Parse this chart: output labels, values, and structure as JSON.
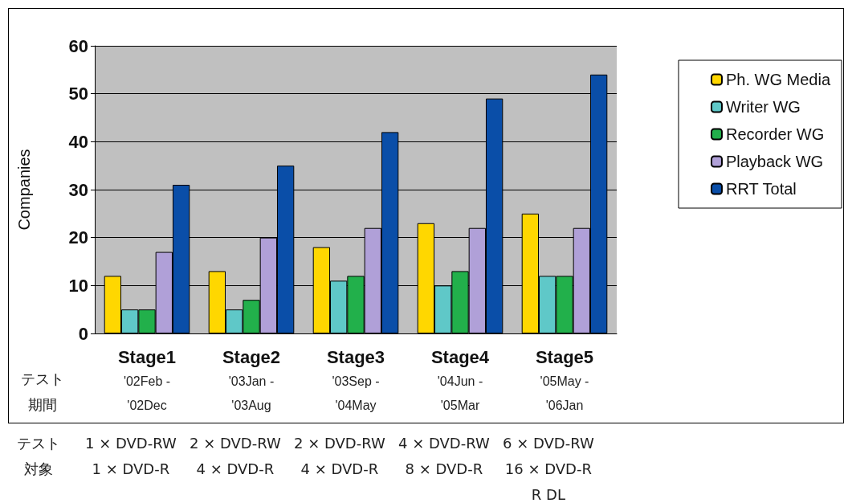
{
  "chart_data": {
    "type": "bar",
    "ylabel": "Companies",
    "categories": [
      "Stage1\n'02Feb -\n'02Dec",
      "Stage2\n'03Jan -\n'03Aug",
      "Stage3\n'03Sep -\n'04May",
      "Stage4\n'04Jun -\n'05Mar",
      "Stage5\n'05May -\n'06Jan"
    ],
    "series": [
      {
        "name": "Ph. WG Media",
        "color": "#ffd700",
        "values": [
          12,
          13,
          18,
          23,
          25
        ]
      },
      {
        "name": "Writer WG",
        "color": "#5fc8c8",
        "values": [
          5,
          5,
          11,
          10,
          12
        ]
      },
      {
        "name": "Recorder WG",
        "color": "#22b04b",
        "values": [
          5,
          7,
          12,
          13,
          12
        ]
      },
      {
        "name": "Playback WG",
        "color": "#b0a0d8",
        "values": [
          17,
          20,
          22,
          22,
          22
        ]
      },
      {
        "name": "RRT Total",
        "color": "#0a4ea8",
        "values": [
          31,
          35,
          42,
          49,
          54
        ]
      }
    ],
    "ylim": [
      0,
      60
    ],
    "yticks": [
      0,
      10,
      20,
      30,
      40,
      50,
      60
    ],
    "grid": "y",
    "legend": "right",
    "annotations": [
      "テスト期間",
      "テスト対象",
      "1 × DVD-RW\n1 × DVD-R",
      "2 × DVD-RW\n4 × DVD-R",
      "2 × DVD-RW\n4 × DVD-R",
      "4 × DVD-RW\n8 × DVD-R",
      "6 × DVD-RW\n16 × DVD-R\nR DL"
    ]
  }
}
